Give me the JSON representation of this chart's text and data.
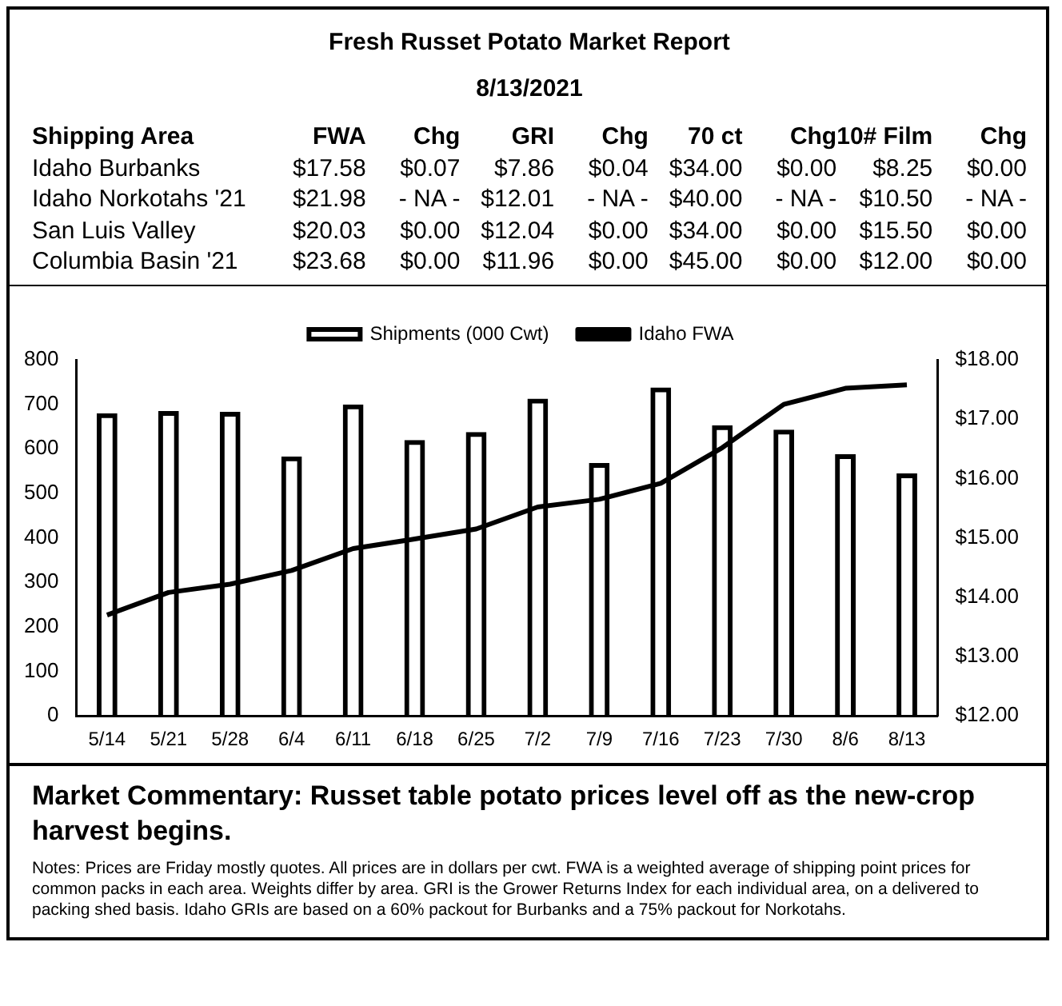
{
  "chart_data": [
    {
      "type": "other",
      "title": "Fresh Russet Potato Market Report",
      "subtitle": "8/13/2021",
      "annotations": [
        "Shipping Area",
        "FWA",
        "Chg",
        "GRI",
        "Chg",
        "70 ct",
        "Chg",
        "10# Film",
        "Chg",
        "Idaho Burbanks",
        "$17.58",
        "$0.07",
        "$7.86",
        "$0.04",
        "$34.00",
        "$0.00",
        "$8.25",
        "$0.00",
        "Idaho Norkotahs '21",
        "$21.98",
        "- NA -",
        "$12.01",
        "- NA -",
        "$40.00",
        "- NA -",
        "$10.50",
        "- NA -",
        "San Luis Valley",
        "$20.03",
        "$0.00",
        "$12.04",
        "$0.00",
        "$34.00",
        "$0.00",
        "$15.50",
        "$0.00",
        "Columbia Basin '21",
        "$23.68",
        "$0.00",
        "$11.96",
        "$0.00",
        "$45.00",
        "$0.00",
        "$12.00",
        "$0.00"
      ]
    },
    {
      "type": "bar",
      "categories": [
        "5/14",
        "5/21",
        "5/28",
        "6/4",
        "6/11",
        "6/18",
        "6/25",
        "7/2",
        "7/9",
        "7/16",
        "7/23",
        "7/30",
        "8/6",
        "8/13"
      ],
      "series": [
        {
          "name": "Shipments (000 Cwt)",
          "type": "bar",
          "color": "#000000",
          "values": [
            680,
            685,
            683,
            583,
            700,
            620,
            638,
            713,
            568,
            738,
            653,
            643,
            588,
            545
          ]
        },
        {
          "name": "Idaho FWA",
          "type": "line",
          "axis": "y2",
          "color": "#000000",
          "values": [
            13.7,
            14.08,
            14.22,
            14.45,
            14.82,
            14.98,
            15.15,
            15.52,
            15.65,
            15.92,
            16.52,
            17.25,
            17.52,
            17.58
          ]
        }
      ],
      "ylim": [
        0,
        800
      ],
      "yticks": [
        0,
        100,
        200,
        300,
        400,
        500,
        600,
        700,
        800
      ],
      "y2lim": [
        12,
        18
      ],
      "y2ticks": [
        {
          "value": 12,
          "label": "$12.00"
        },
        {
          "value": 13,
          "label": "$13.00"
        },
        {
          "value": 14,
          "label": "$14.00"
        },
        {
          "value": 15,
          "label": "$15.00"
        },
        {
          "value": 16,
          "label": "$16.00"
        },
        {
          "value": 17,
          "label": "$17.00"
        },
        {
          "value": 18,
          "label": "$18.00"
        }
      ],
      "grid": false,
      "legend": "top",
      "annotations": [
        "Market Commentary: Russet table potato prices level off as the new-crop harvest begins.",
        "Notes: Prices are Friday mostly quotes. All prices are in dollars per cwt. FWA is a weighted average of shipping point prices for  common packs in each area. Weights differ by area. GRI is the Grower Returns Index for each individual area, on a delivered to packing shed basis. Idaho GRIs are based on a 60% packout for Burbanks and a 75% packout for Norkotahs."
      ]
    }
  ]
}
